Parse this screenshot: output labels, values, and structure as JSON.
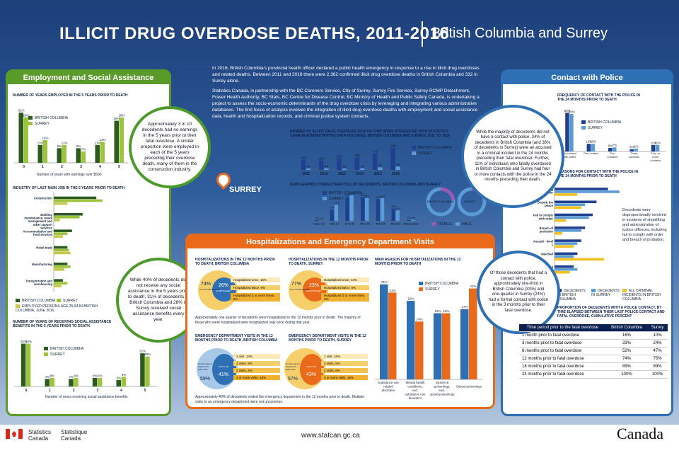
{
  "title": "ILLICIT DRUG OVERDOSE DEATHS, 2011-2016",
  "subtitle": "British Columbia and Surrey",
  "intro1": "In 2016, British Columbia's provincial health officer declared a public health emergency in response to a rise in illicit drug overdoses and related deaths. Between 2011 and 2016 there were 2,362 confirmed illicit drug overdose deaths in British Columbia and 332 in Surrey alone.",
  "intro2": "Statistics Canada, in partnership with the BC Coroners Service, City of Surrey, Surrey Fire Service, Surrey RCMP Detachment, Fraser Health Authority, BC Stats, BC Centre for Disease Control, BC Ministry of Health and Public Safety Canada, is undertaking a project to assess the socio-economic determinants of the drug overdose crisis by leveraging and integrating various administrative databases. The first focus of analysis involves the integration of illicit drug overdose deaths with employment and social assistance data, health and hospitalization records, and criminal justice system contacts.",
  "colors": {
    "bc": "#2d5a1e",
    "surrey": "#9cc43c",
    "bc_blue": "#1f3f8f",
    "surrey_blue": "#5b9bd5",
    "orange": "#e86a1a",
    "gold": "#f0b030"
  },
  "left": {
    "header": "Employment and Social Assistance",
    "chart1_title": "NUMBER OF YEARS EMPLOYED IN THE 5 YEARS PRIOR TO DEATH",
    "chart1_xlabel": "Number of years with earnings over $500",
    "chart2_title": "INDUSTRY OF LAST MAIN JOB IN THE 5 YEARS PRIOR TO DEATH",
    "chart3_title": "NUMBER OF YEARS OF RECEIVING SOCIAL ASSISTANCE BENEFITS IN THE 5 YEARS PRIOR TO DEATH",
    "chart3_xlabel": "Number of years receiving social assistance benefits",
    "legend_bc": "BRITISH COLUMBIA",
    "legend_surrey": "SURREY",
    "legend_emp": "EMPLOYED PERSONS AGE 25-64 IN BRITISH COLUMBIA, JUNE 2016",
    "bubble1": "Approximately 3 in 10 decedents had no earnings in the 5 years prior to their fatal overdose. A similar proportion were employed in each of the 5 years preceding their overdose death, many of them in the construction industry.",
    "bubble2": "While 40% of decedents did not receive any social assistance in the 5 years prior to death, 31% of decedents in British Columbia and 28% in Surrey received social assistance benefits every year."
  },
  "right": {
    "header": "Contact with Police",
    "chart1_title": "FREQUENCY OF CONTACT WITH THE POLICE IN THE 24 MONTHS PRIOR TO DEATH",
    "chart2_title": "REASONS FOR CONTACT WITH THE POLICE IN THE 24 MONTHS PRIOR TO DEATH",
    "bubble1": "While the majority of decedents did not have a contact with police, 34% of decedents in British Columbia (and 36% of decedents in Surrey) were an accused in a criminal incident in the 24 months preceding their fatal overdose. Further, 11% of individuals who fatally overdosed in British Columbia and Surrey had four or more contacts with the police in the 24 months preceding their death.",
    "bubble2": "Of those decedents that had a contact with police, approximately one-third in British Columbia (33%) and one-quarter in Surrey (24%) had a formal contact with police in the 3 months prior to their fatal overdose.",
    "note": "Decedents were disproportionally involved in incidents of shoplifting and administration of justice offences, including fail to comply with order and breach of probation.",
    "legend_bc": "DECEDENTS IN BRITISH COLUMBIA",
    "legend_surrey": "DECEDENTS IN SURREY",
    "legend_all": "ALL CRIMINAL INCIDENTS IN BRITISH COLUMBIA",
    "table_title": "PROPORTION OF DECEDENTS WITH A POLICE CONTACT, BY TIME ELAPSED BETWEEN THEIR LAST POLICE CONTACT AND FATAL OVERDOSE, CUMULATIVE PERCENT",
    "table_headers": [
      "Time period prior to the fatal overdose",
      "British Columbia",
      "Surrey"
    ],
    "table_rows": [
      [
        "1 month prior to fatal overdose",
        "16%",
        "10%"
      ],
      [
        "3 months prior to fatal overdose",
        "33%",
        "24%"
      ],
      [
        "6 months prior to fatal overdose",
        "52%",
        "47%"
      ],
      [
        "12 months prior to fatal overdose",
        "74%",
        "75%"
      ],
      [
        "18 months prior to fatal overdose",
        "89%",
        "89%"
      ],
      [
        "24 months prior to fatal overdose",
        "100%",
        "100%"
      ]
    ]
  },
  "center": {
    "surrey_label": "SURREY",
    "deaths_title": "NUMBER OF ILLICIT DRUG OVERDOSE DEATHS THAT WERE INTEGRATED WITH STATISTICS CANADA ADMINISTRATIVE DATA HOLDINGS, BRITISH COLUMBIA AND SURREY, 2011 TO 2016",
    "demo_title": "DEMOGRAPHIC CHARACTERISTICS OF DECEDENTS, BRITISH COLUMBIA AND SURREY",
    "female": "FEMALE",
    "male": "MALE",
    "donut_bc": "BRITISH COLUMBIA",
    "donut_surrey": "SURREY",
    "legend_bc": "BRITISH COLUMBIA",
    "legend_surrey": "SURREY"
  },
  "hosp": {
    "header": "Hospitalizations and Emergency Department Visits",
    "h1_title": "HOSPITALIZATIONS IN THE 12 MONTHS PRIOR TO DEATH, BRITISH COLUMBIA",
    "h2_title": "HOSPITALIZATIONS IN THE 12 MONTHS PRIOR TO DEATH, SURREY",
    "h1_not": "74%",
    "h1_hosp": "26%",
    "h2_not": "77%",
    "h2_hosp": "23%",
    "not_hosp": "NOT HOSPITALIZED",
    "hosp_lbl": "HOSPITALIZED",
    "h1_items": [
      "Hospitalized once, 15%",
      "Hospitalized twice, 6%",
      "Hospitalized 3 or more times, 6%"
    ],
    "h2_items": [
      "Hospitalized once, 13%",
      "Hospitalized twice, 6%",
      "Hospitalized 3 or more times, 4%"
    ],
    "h_note": "Approximately one quarter of decedents were hospitalized in the 12 months prior to death. The majority of those who were hospitalized were hospitalized only once during that year.",
    "e1_title": "EMERGENCY DEPARTMENT VISITS IN THE 12 MONTHS PRIOR TO DEATH, BRITISH COLUMBIA",
    "e2_title": "EMERGENCY DEPARTMENT VISITS IN THE 12 MONTHS PRIOR TO DEATH, SURREY",
    "e1_no": "59%",
    "e1_vis": "41%",
    "e2_no": "57%",
    "e2_vis": "43%",
    "no_ed": "No Emergency department (ED) visits",
    "vis_ed": "Visit to ED",
    "e1_items": [
      "1 visit, 14%",
      "2 visits, 8%",
      "3 visits, 5%",
      "4 or more visits, 15%"
    ],
    "e2_items": [
      "1 visit, 16%",
      "2 visits, 5%",
      "3 visits, 6%",
      "4 or more visits, 15%"
    ],
    "e_note": "Approximately 40% of decedents visited the emergency department in the 12 months prior to death. Multiple visits to an emergency department were not uncommon.",
    "reason_title": "MAIN REASON FOR HOSPITALIZATIONS IN THE 12 MONTHS PRIOR TO DEATH",
    "legend_bc": "BRITISH COLUMBIA",
    "legend_surrey": "SURREY"
  },
  "footer": {
    "statcan_en": "Statistics Canada",
    "statcan_fr": "Statistique Canada",
    "url": "www.statcan.gc.ca",
    "wordmark": "Canada"
  },
  "chart_data": [
    {
      "type": "bar",
      "title": "NUMBER OF YEARS EMPLOYED IN THE 5 YEARS PRIOR TO DEATH",
      "categories": [
        "0",
        "1",
        "2",
        "3",
        "4",
        "5"
      ],
      "series": [
        {
          "name": "BRITISH COLUMBIA",
          "values": [
            31,
            11,
            9,
            9,
            11,
            26
          ]
        },
        {
          "name": "SURREY",
          "values": [
            28,
            14,
            11,
            7,
            13,
            28
          ]
        }
      ],
      "ylim": [
        0,
        35
      ]
    },
    {
      "type": "bar",
      "title": "INDUSTRY OF LAST MAIN JOB IN THE 5 YEARS PRIOR TO DEATH",
      "categories": [
        "Construction",
        "Building maintenance, waste management and other support services",
        "Accommodation and food services",
        "Retail trade",
        "Manufacturing",
        "Transportation and warehousing"
      ],
      "series": [
        {
          "name": "BRITISH COLUMBIA",
          "values": [
            28,
            19,
            12,
            9,
            9,
            6
          ]
        },
        {
          "name": "SURREY",
          "values": [
            32,
            17,
            9,
            10,
            11,
            9
          ]
        },
        {
          "name": "EMPLOYED PERSONS AGE 25-64 IN BRITISH COLUMBIA, JUNE 2016",
          "values": [
            9,
            4,
            6,
            11,
            7,
            5
          ]
        }
      ],
      "xlim": [
        0,
        40
      ]
    },
    {
      "type": "bar",
      "title": "NUMBER OF YEARS OF RECEIVING SOCIAL ASSISTANCE BENEFITS IN THE 5 YEARS PRIOR TO DEATH",
      "categories": [
        "0",
        "1",
        "2",
        "3",
        "4",
        "5"
      ],
      "series": [
        {
          "name": "BRITISH COLUMBIA",
          "values": [
            40,
            7,
            7,
            8,
            6,
            31
          ]
        },
        {
          "name": "SURREY",
          "values": [
            40,
            8,
            8,
            8,
            9,
            28
          ]
        }
      ],
      "ylim": [
        0,
        45
      ]
    },
    {
      "type": "bar",
      "title": "NUMBER OF ILLICIT DRUG OVERDOSE DEATHS",
      "categories": [
        "2011",
        "2012",
        "2013",
        "2014",
        "2015",
        "2016"
      ],
      "series": [
        {
          "name": "BRITISH COLUMBIA",
          "values": [
            293,
            268,
            326,
            360,
            476,
            639
          ]
        },
        {
          "name": "SURREY",
          "values": [
            42,
            44,
            35,
            44,
            72,
            95
          ]
        }
      ]
    },
    {
      "type": "bar",
      "title": "DEMOGRAPHIC CHARACTERISTICS OF DECEDENTS",
      "categories": [
        "Under 18",
        "18 to 24",
        "25 to 34",
        "35 to 44",
        "45 to 54",
        "55 to 64",
        "65 and older"
      ],
      "series": [
        {
          "name": "BRITISH COLUMBIA",
          "values": [
            1,
            12,
            25,
            25,
            23,
            13,
            1
          ]
        },
        {
          "name": "SURREY",
          "values": [
            0,
            17,
            27,
            24,
            24,
            11,
            1
          ]
        }
      ]
    },
    {
      "type": "pie",
      "title": "BRITISH COLUMBIA",
      "categories": [
        "FEMALE",
        "MALE"
      ],
      "values": [
        23,
        77
      ]
    },
    {
      "type": "pie",
      "title": "SURREY",
      "categories": [
        "FEMALE",
        "MALE"
      ],
      "values": [
        19,
        81
      ]
    },
    {
      "type": "bar",
      "title": "MAIN REASON FOR HOSPITALIZATIONS IN THE 12 MONTHS PRIOR TO DEATH",
      "categories": [
        "Substance use related disorders",
        "Mental health conditions, excl. substance use disorders",
        "Injuries & poisonings, excl. opioid-poisonings",
        "Opioid-poisonings"
      ],
      "series": [
        {
          "name": "BRITISH COLUMBIA",
          "values": [
            23,
            19,
            16,
            17
          ]
        },
        {
          "name": "SURREY",
          "values": [
            21,
            14,
            16,
            22
          ]
        }
      ],
      "ylim": [
        0,
        25
      ]
    },
    {
      "type": "bar",
      "title": "FREQUENCY OF CONTACT WITH THE POLICE IN THE 24 MONTHS PRIOR TO DEATH",
      "categories": [
        "No contact with police",
        "One contact",
        "Two contacts",
        "Three contacts",
        "Four or more contacts"
      ],
      "series": [
        {
          "name": "BRITISH COLUMBIA",
          "values": [
            66,
            13,
            6,
            4,
            11
          ]
        },
        {
          "name": "SURREY",
          "values": [
            64,
            13,
            7,
            5,
            11
          ]
        }
      ],
      "ylim": [
        0,
        70
      ]
    },
    {
      "type": "bar",
      "title": "REASONS FOR CONTACT WITH THE POLICE IN THE 24 MONTHS PRIOR TO DEATH",
      "categories": [
        "Shoplifting $5,000 or under",
        "Disturb the peace",
        "Fail to comply with order",
        "Breach of probation",
        "Assault - level 1",
        "Mischief",
        "Breaking and entering"
      ],
      "series": [
        {
          "name": "DECEDENTS IN BRITISH COLUMBIA",
          "values": [
            14,
            11,
            10,
            8,
            7,
            6,
            5
          ]
        },
        {
          "name": "DECEDENTS IN SURREY",
          "values": [
            17,
            8,
            9,
            7,
            6,
            5,
            6
          ]
        },
        {
          "name": "ALL CRIMINAL INCIDENTS IN BRITISH COLUMBIA",
          "values": [
            6,
            7,
            3,
            2,
            5,
            13,
            4
          ]
        }
      ]
    }
  ]
}
